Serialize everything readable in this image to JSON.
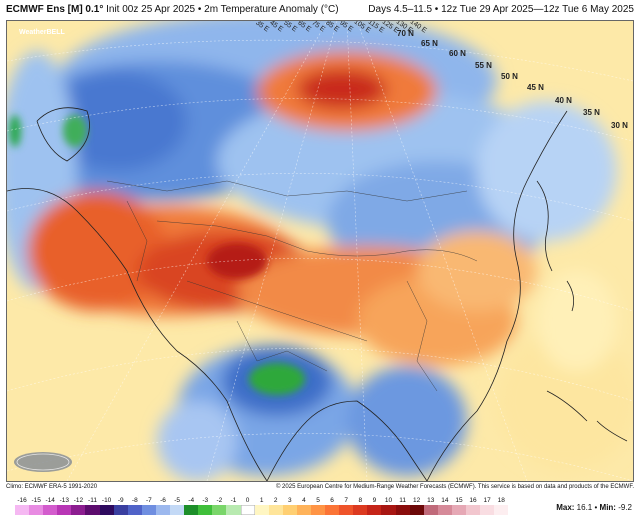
{
  "title": {
    "model": "ECMWF Ens [M] 0.1°",
    "init": "Init 00z 25 Apr 2025",
    "field": "2m Temperature Anomaly (°C)",
    "valid": "Days 4.5–11.5 • 12z Tue 29 Apr 2025—12z Tue 6 May 2025",
    "separator": "•"
  },
  "lat_labels": [
    "70 N",
    "65 N",
    "60 N",
    "55 N",
    "50 N",
    "45 N",
    "40 N",
    "35 N",
    "30 N"
  ],
  "lon_labels": [
    "35 E",
    "45 E",
    "55 E",
    "65 E",
    "75 E",
    "85 E",
    "95 E",
    "105 E",
    "115 E",
    "125 E",
    "130 E",
    "140 E"
  ],
  "logo": {
    "text": "WeatherBELL"
  },
  "footer": {
    "climo": "Climo: ECMWF ERA-5 1991-2020",
    "copyright": "© 2025 European Centre for Medium-Range Weather Forecasts (ECMWF). This service is based on data and products of the ECMWF.",
    "max_label": "Max:",
    "max_value": "16.1",
    "min_label": "Min:",
    "min_value": "-9.2",
    "max_min_sep": "•"
  },
  "colorbar": {
    "labels": [
      "-16",
      "-15",
      "-14",
      "-13",
      "-12",
      "-11",
      "-10",
      "-9",
      "-8",
      "-7",
      "-6",
      "-5",
      "-4",
      "-3",
      "-2",
      "-1",
      "0",
      "1",
      "2",
      "3",
      "4",
      "5",
      "6",
      "7",
      "8",
      "9",
      "10",
      "11",
      "12",
      "13",
      "14",
      "15",
      "16",
      "17",
      "18"
    ],
    "colors": [
      "#f5b8f2",
      "#e88be2",
      "#d35ccd",
      "#b836b5",
      "#8c1d90",
      "#5d0c6e",
      "#2e0a5e",
      "#3a3fa0",
      "#5063c8",
      "#6f8ee0",
      "#9cb8ee",
      "#c3d9f6",
      "#1d8f2a",
      "#3fbf3a",
      "#7ad66a",
      "#b8eab0",
      "#ffffff",
      "#fff6c2",
      "#ffe59a",
      "#ffcf72",
      "#ffb35a",
      "#ff9445",
      "#fb7436",
      "#ef542a",
      "#dc3a20",
      "#c52418",
      "#a81612",
      "#8a0d0c",
      "#6c0808",
      "#c06a7a",
      "#d68a99",
      "#e6a8b5",
      "#f2c6ce",
      "#f9dde2",
      "#fdeef0"
    ]
  }
}
